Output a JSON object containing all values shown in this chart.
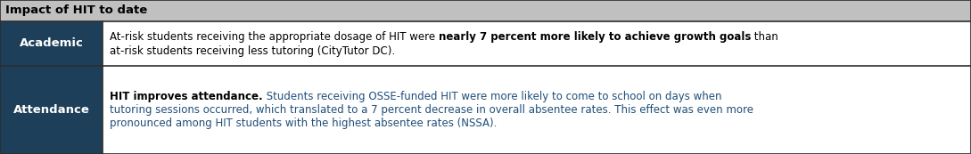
{
  "title": "Impact of HIT to date",
  "header_bg": "#c0c0c0",
  "header_text_color": "#000000",
  "header_font_size": 9.5,
  "row_label_bg": "#1e3f5a",
  "row_label_text_color": "#ffffff",
  "row_bg": "#ffffff",
  "border_color": "#2d2d2d",
  "blue_text": "#1f4e79",
  "black_text": "#000000",
  "figsize": [
    10.89,
    1.73
  ],
  "dpi": 100,
  "content_font_size": 8.5,
  "label_font_size": 9.5,
  "row1_academic": {
    "label": "Academic",
    "part1": "At-risk students receiving the appropriate dosage of HIT were ",
    "part2_bold": "nearly 7 percent more likely to achieve growth goals",
    "part3": " than",
    "line2": "at-risk students receiving less tutoring (CityTutor DC)."
  },
  "row2_attendance": {
    "label": "Attendance",
    "bold_start": "HIT improves attendance.",
    "line1_rest": " Students receiving OSSE-funded HIT were more likely to come to school on days when",
    "line2": "tutoring sessions occurred, which translated to a 7 percent decrease in overall absentee rates. This effect was even more",
    "line3": "pronounced among HIT students with the highest absentee rates (NSSA)."
  }
}
